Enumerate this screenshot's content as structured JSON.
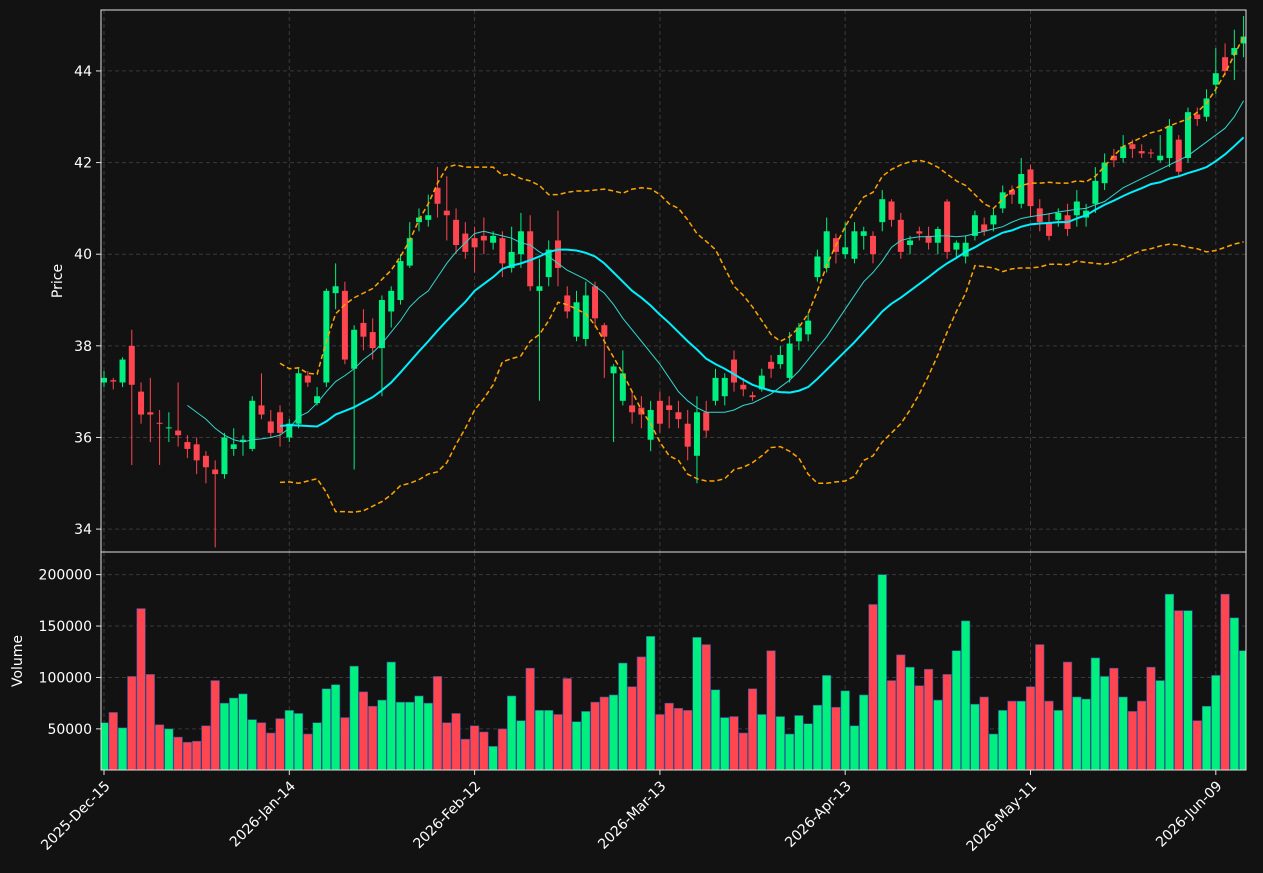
{
  "chart_data": {
    "type": "candlestick",
    "ylabel": "Price",
    "grid": true,
    "up_color": "#00f080",
    "down_color": "#ff4550",
    "ylim": [
      33.5,
      45.33
    ],
    "yticks": [
      34,
      36,
      38,
      40,
      42,
      44
    ],
    "categories": [
      "2025-Dec-15",
      null,
      null,
      null,
      null,
      null,
      null,
      null,
      null,
      null,
      null,
      null,
      null,
      null,
      null,
      null,
      null,
      null,
      null,
      null,
      "2026-Jan-14",
      null,
      null,
      null,
      null,
      null,
      null,
      null,
      null,
      null,
      null,
      null,
      null,
      null,
      null,
      null,
      null,
      null,
      null,
      null,
      "2026-Feb-12",
      null,
      null,
      null,
      null,
      null,
      null,
      null,
      null,
      null,
      null,
      null,
      null,
      null,
      null,
      null,
      null,
      null,
      null,
      null,
      "2026-Mar-13",
      null,
      null,
      null,
      null,
      null,
      null,
      null,
      null,
      null,
      null,
      null,
      null,
      null,
      null,
      null,
      null,
      null,
      null,
      null,
      "2026-Apr-13",
      null,
      null,
      null,
      null,
      null,
      null,
      null,
      null,
      null,
      null,
      null,
      null,
      null,
      null,
      null,
      null,
      null,
      null,
      null,
      "2026-May-11",
      null,
      null,
      null,
      null,
      null,
      null,
      null,
      null,
      null,
      null,
      null,
      null,
      null,
      null,
      null,
      null,
      null,
      null,
      null,
      "2026-Jun-09",
      null,
      null,
      null
    ],
    "open": [
      37.2,
      37.25,
      37.2,
      38.0,
      37.0,
      36.55,
      36.32,
      36.2,
      36.15,
      35.9,
      35.85,
      35.6,
      35.3,
      35.2,
      35.75,
      35.9,
      35.75,
      36.7,
      36.35,
      36.55,
      36.0,
      36.3,
      37.35,
      36.75,
      37.2,
      39.15,
      39.2,
      37.5,
      38.5,
      38.3,
      37.95,
      38.75,
      39.0,
      39.75,
      40.7,
      40.75,
      41.45,
      40.95,
      40.75,
      40.45,
      40.35,
      40.4,
      40.25,
      40.35,
      39.7,
      40.0,
      40.5,
      39.2,
      39.5,
      40.3,
      39.1,
      38.2,
      38.15,
      39.3,
      38.45,
      37.4,
      36.8,
      36.7,
      36.65,
      35.95,
      36.8,
      36.7,
      36.55,
      36.3,
      35.6,
      36.55,
      36.8,
      36.9,
      37.7,
      37.15,
      36.92,
      37.05,
      37.65,
      37.6,
      37.3,
      38.1,
      38.25,
      39.5,
      39.7,
      40.35,
      40.0,
      39.9,
      40.4,
      40.4,
      40.7,
      41.15,
      40.75,
      40.2,
      40.5,
      40.4,
      40.25,
      41.15,
      40.1,
      39.95,
      40.4,
      40.65,
      40.65,
      41.0,
      41.4,
      41.1,
      41.85,
      41.0,
      40.7,
      40.75,
      40.85,
      40.85,
      40.8,
      41.1,
      41.55,
      42.15,
      42.1,
      42.4,
      42.25,
      42.22,
      42.05,
      42.1,
      42.5,
      42.1,
      43.05,
      43.0,
      43.7,
      44.3,
      44.35,
      44.6
    ],
    "high": [
      37.45,
      37.3,
      37.75,
      38.35,
      37.2,
      37.3,
      36.6,
      36.55,
      37.2,
      36.05,
      36.0,
      35.7,
      35.5,
      36.1,
      36.2,
      36.05,
      36.9,
      37.4,
      36.6,
      36.7,
      36.4,
      37.5,
      37.45,
      37.1,
      39.25,
      39.8,
      39.4,
      38.45,
      38.8,
      38.6,
      39.1,
      39.3,
      40.0,
      40.7,
      41.0,
      41.3,
      41.9,
      41.7,
      41.0,
      40.7,
      40.6,
      40.8,
      40.5,
      40.5,
      40.6,
      40.9,
      40.85,
      39.9,
      40.3,
      40.95,
      39.3,
      39.2,
      39.4,
      39.4,
      38.5,
      37.6,
      37.9,
      37.0,
      36.9,
      36.8,
      37.0,
      36.9,
      36.8,
      36.6,
      36.9,
      36.8,
      37.5,
      37.4,
      37.9,
      37.3,
      37.0,
      37.5,
      37.8,
      38.0,
      38.3,
      38.5,
      38.7,
      40.1,
      40.8,
      40.45,
      40.7,
      40.7,
      40.6,
      40.5,
      41.4,
      41.2,
      40.9,
      40.4,
      40.6,
      40.6,
      40.6,
      41.2,
      40.3,
      40.4,
      40.95,
      40.8,
      41.0,
      41.5,
      41.5,
      42.1,
      41.95,
      41.2,
      40.9,
      41.0,
      41.1,
      41.4,
      41.1,
      41.9,
      42.2,
      42.3,
      42.6,
      42.5,
      42.4,
      42.3,
      42.6,
      42.95,
      42.6,
      43.2,
      43.2,
      43.6,
      44.5,
      44.6,
      44.9,
      45.2
    ],
    "low": [
      37.1,
      37.05,
      37.1,
      35.4,
      36.3,
      35.9,
      35.4,
      35.9,
      35.8,
      35.55,
      35.2,
      35.0,
      33.6,
      35.1,
      35.6,
      35.6,
      35.7,
      36.4,
      36.0,
      35.8,
      35.9,
      36.2,
      37.1,
      36.7,
      37.1,
      38.8,
      37.6,
      35.3,
      37.9,
      37.7,
      36.9,
      38.4,
      38.9,
      39.7,
      40.5,
      40.6,
      40.8,
      40.3,
      40.0,
      39.9,
      39.6,
      40.0,
      40.1,
      39.5,
      39.6,
      39.7,
      39.2,
      36.8,
      39.3,
      39.3,
      38.6,
      38.1,
      38.0,
      38.4,
      37.3,
      35.9,
      36.7,
      36.3,
      36.2,
      35.7,
      36.1,
      36.2,
      36.2,
      35.5,
      35.0,
      36.0,
      36.7,
      36.7,
      37.0,
      36.9,
      36.8,
      37.0,
      37.3,
      37.5,
      37.2,
      37.9,
      38.1,
      39.4,
      39.6,
      39.8,
      39.9,
      39.8,
      40.1,
      39.8,
      40.5,
      40.6,
      39.9,
      40.0,
      40.3,
      40.1,
      40.0,
      39.9,
      39.9,
      39.8,
      40.3,
      40.4,
      40.5,
      40.9,
      41.1,
      41.0,
      40.8,
      40.5,
      40.3,
      40.6,
      40.4,
      40.6,
      40.6,
      40.9,
      41.4,
      41.9,
      42.0,
      42.1,
      42.1,
      42.1,
      42.0,
      41.9,
      41.7,
      42.0,
      42.8,
      42.9,
      43.5,
      43.9,
      43.8,
      44.3
    ],
    "close": [
      37.3,
      37.22,
      37.7,
      37.15,
      36.5,
      36.5,
      36.3,
      36.22,
      36.05,
      35.75,
      35.5,
      35.35,
      35.2,
      36.0,
      35.85,
      35.95,
      36.8,
      36.5,
      36.1,
      36.1,
      36.3,
      37.4,
      37.2,
      36.9,
      39.2,
      39.3,
      37.7,
      38.35,
      38.2,
      37.95,
      39.0,
      39.2,
      39.85,
      40.35,
      40.8,
      40.85,
      41.1,
      40.85,
      40.2,
      40.05,
      40.15,
      40.3,
      40.4,
      39.8,
      40.05,
      40.5,
      39.3,
      39.3,
      40.1,
      39.7,
      38.75,
      38.95,
      39.1,
      38.6,
      38.2,
      37.55,
      37.4,
      36.55,
      36.5,
      36.6,
      36.3,
      36.6,
      36.4,
      35.8,
      36.55,
      36.15,
      37.3,
      37.3,
      37.2,
      37.05,
      36.88,
      37.35,
      37.5,
      37.8,
      38.05,
      38.4,
      38.55,
      39.95,
      40.5,
      40.05,
      40.15,
      40.5,
      40.5,
      40.0,
      41.2,
      40.75,
      40.05,
      40.3,
      40.45,
      40.25,
      40.55,
      40.05,
      40.25,
      40.25,
      40.85,
      40.5,
      40.85,
      41.35,
      41.3,
      41.75,
      41.05,
      40.7,
      40.4,
      40.9,
      40.55,
      41.15,
      40.95,
      41.6,
      42.0,
      42.05,
      42.35,
      42.3,
      42.2,
      42.2,
      42.15,
      42.8,
      41.8,
      43.1,
      42.95,
      43.4,
      43.95,
      44.0,
      44.5,
      44.75
    ],
    "series": [
      {
        "color": "#ffa500",
        "dashed": true,
        "linewidth": 1.5,
        "values": [
          null,
          null,
          null,
          null,
          null,
          null,
          null,
          null,
          null,
          null,
          null,
          null,
          null,
          null,
          null,
          null,
          null,
          null,
          null,
          37.62,
          37.5,
          37.52,
          37.4,
          37.38,
          38.1,
          38.7,
          38.9,
          39.05,
          39.15,
          39.25,
          39.45,
          39.65,
          39.95,
          40.3,
          40.75,
          41.1,
          41.55,
          41.9,
          41.95,
          41.9,
          41.9,
          41.9,
          41.9,
          41.72,
          41.75,
          41.65,
          41.6,
          41.5,
          41.3,
          41.3,
          41.35,
          41.38,
          41.38,
          41.4,
          41.42,
          41.38,
          41.33,
          41.42,
          41.45,
          41.43,
          41.3,
          41.1,
          41.0,
          40.75,
          40.45,
          40.28,
          40.1,
          39.7,
          39.3,
          39.1,
          38.85,
          38.55,
          38.25,
          38.1,
          38.2,
          38.4,
          38.7,
          39.2,
          39.75,
          40.2,
          40.6,
          40.95,
          41.25,
          41.35,
          41.7,
          41.85,
          41.95,
          42.02,
          42.05,
          42.0,
          41.9,
          41.75,
          41.6,
          41.5,
          41.3,
          41.1,
          41.0,
          41.2,
          41.4,
          41.5,
          41.55,
          41.55,
          41.57,
          41.55,
          41.55,
          41.6,
          41.58,
          41.7,
          41.92,
          42.15,
          42.35,
          42.45,
          42.55,
          42.65,
          42.7,
          42.8,
          42.88,
          42.95,
          43.1,
          43.3,
          43.6,
          43.95,
          44.35,
          44.75
        ]
      },
      {
        "color": "#ffa500",
        "dashed": true,
        "linewidth": 1.5,
        "values": [
          null,
          null,
          null,
          null,
          null,
          null,
          null,
          null,
          null,
          null,
          null,
          null,
          null,
          null,
          null,
          null,
          null,
          null,
          null,
          35.02,
          35.03,
          35.0,
          35.05,
          35.1,
          34.8,
          34.38,
          34.38,
          34.37,
          34.4,
          34.5,
          34.6,
          34.75,
          34.95,
          35.0,
          35.08,
          35.2,
          35.25,
          35.45,
          35.85,
          36.2,
          36.6,
          36.85,
          37.15,
          37.65,
          37.72,
          37.78,
          38.1,
          38.25,
          38.55,
          38.95,
          38.9,
          38.8,
          38.7,
          38.45,
          38.1,
          37.75,
          37.4,
          37.0,
          36.6,
          36.3,
          35.9,
          35.6,
          35.5,
          35.2,
          35.1,
          35.05,
          35.05,
          35.1,
          35.3,
          35.35,
          35.45,
          35.6,
          35.78,
          35.8,
          35.7,
          35.55,
          35.2,
          35.0,
          35.0,
          35.03,
          35.05,
          35.15,
          35.5,
          35.6,
          35.9,
          36.1,
          36.3,
          36.6,
          36.95,
          37.35,
          37.8,
          38.3,
          38.75,
          39.15,
          39.75,
          39.73,
          39.7,
          39.62,
          39.68,
          39.7,
          39.7,
          39.72,
          39.78,
          39.78,
          39.77,
          39.85,
          39.82,
          39.8,
          39.78,
          39.82,
          39.9,
          40.0,
          40.08,
          40.12,
          40.18,
          40.22,
          40.2,
          40.15,
          40.12,
          40.05,
          40.08,
          40.15,
          40.22,
          40.27
        ]
      },
      {
        "color": "#30d8d0",
        "dashed": false,
        "linewidth": 1,
        "values": [
          null,
          null,
          null,
          null,
          null,
          null,
          null,
          null,
          null,
          36.7,
          36.55,
          36.4,
          36.2,
          36.05,
          35.95,
          35.9,
          35.95,
          35.97,
          36.0,
          36.05,
          36.2,
          36.45,
          36.55,
          36.75,
          37.0,
          37.22,
          37.35,
          37.5,
          37.7,
          37.85,
          38.05,
          38.3,
          38.55,
          38.85,
          39.05,
          39.2,
          39.5,
          39.8,
          40.05,
          40.25,
          40.45,
          40.5,
          40.45,
          40.4,
          40.35,
          40.25,
          40.2,
          40.05,
          39.95,
          39.8,
          39.65,
          39.55,
          39.45,
          39.3,
          39.15,
          38.9,
          38.6,
          38.35,
          38.1,
          37.85,
          37.6,
          37.3,
          37.0,
          36.8,
          36.65,
          36.55,
          36.55,
          36.55,
          36.6,
          36.7,
          36.75,
          36.85,
          36.95,
          37.1,
          37.25,
          37.45,
          37.7,
          37.95,
          38.2,
          38.5,
          38.8,
          39.1,
          39.4,
          39.6,
          39.85,
          40.15,
          40.3,
          40.35,
          40.38,
          40.38,
          40.4,
          40.4,
          40.38,
          40.4,
          40.45,
          40.5,
          40.55,
          40.6,
          40.7,
          40.78,
          40.82,
          40.85,
          40.88,
          40.92,
          40.95,
          40.98,
          41.0,
          41.08,
          41.15,
          41.3,
          41.45,
          41.55,
          41.65,
          41.75,
          41.85,
          41.95,
          42.05,
          42.15,
          42.3,
          42.45,
          42.6,
          42.75,
          43.0,
          43.35
        ]
      },
      {
        "color": "#00f0ff",
        "dashed": false,
        "linewidth": 2,
        "values": [
          null,
          null,
          null,
          null,
          null,
          null,
          null,
          null,
          null,
          null,
          null,
          null,
          null,
          null,
          null,
          null,
          null,
          null,
          null,
          36.25,
          36.27,
          36.26,
          36.25,
          36.24,
          36.35,
          36.5,
          36.58,
          36.66,
          36.77,
          36.88,
          37.03,
          37.2,
          37.42,
          37.65,
          37.88,
          38.1,
          38.33,
          38.55,
          38.76,
          38.96,
          39.2,
          39.35,
          39.5,
          39.68,
          39.75,
          39.8,
          39.87,
          39.95,
          40.05,
          40.1,
          40.1,
          40.08,
          40.03,
          39.95,
          39.8,
          39.6,
          39.4,
          39.2,
          39.05,
          38.88,
          38.68,
          38.5,
          38.3,
          38.1,
          37.92,
          37.72,
          37.6,
          37.5,
          37.38,
          37.26,
          37.15,
          37.08,
          37.02,
          36.99,
          36.98,
          37.02,
          37.1,
          37.28,
          37.48,
          37.68,
          37.88,
          38.08,
          38.3,
          38.52,
          38.75,
          38.92,
          39.05,
          39.2,
          39.35,
          39.5,
          39.66,
          39.8,
          39.92,
          40.05,
          40.15,
          40.27,
          40.37,
          40.47,
          40.52,
          40.6,
          40.65,
          40.67,
          40.68,
          40.7,
          40.7,
          40.78,
          40.85,
          40.97,
          41.08,
          41.17,
          41.27,
          41.36,
          41.44,
          41.53,
          41.57,
          41.65,
          41.7,
          41.77,
          41.83,
          41.9,
          42.03,
          42.18,
          42.36,
          42.55
        ]
      }
    ],
    "volume": {
      "ylabel": "Volume",
      "ylim": [
        10000,
        222000
      ],
      "yticks": [
        50000,
        100000,
        150000,
        200000
      ],
      "values": [
        56000,
        66000,
        51000,
        101000,
        167000,
        103000,
        54000,
        50000,
        42000,
        37000,
        38000,
        53000,
        97000,
        75000,
        80000,
        84000,
        59000,
        56000,
        46000,
        60000,
        68000,
        65000,
        45000,
        56000,
        89000,
        93000,
        61000,
        111000,
        86000,
        72000,
        78000,
        115000,
        76000,
        76000,
        82000,
        75000,
        101000,
        56000,
        65000,
        40000,
        53000,
        47000,
        33000,
        50000,
        82000,
        58000,
        109000,
        68000,
        68000,
        64000,
        99000,
        57000,
        67000,
        76000,
        81000,
        83000,
        114000,
        91000,
        120000,
        140000,
        64000,
        75000,
        70000,
        68000,
        139000,
        132000,
        88000,
        61000,
        62000,
        46000,
        89000,
        64000,
        126000,
        62000,
        45000,
        63000,
        55000,
        73000,
        102000,
        71000,
        87000,
        53000,
        83000,
        171000,
        200000,
        97000,
        122000,
        110000,
        92000,
        108000,
        78000,
        103000,
        126000,
        155000,
        74000,
        81000,
        45000,
        68000,
        77000,
        77000,
        91000,
        132000,
        77000,
        68000,
        115000,
        81000,
        79000,
        119000,
        101000,
        109000,
        81000,
        67000,
        77000,
        110000,
        97000,
        181000,
        165000,
        165000,
        58000,
        72000,
        102000,
        181000,
        158000,
        126000
      ]
    }
  }
}
